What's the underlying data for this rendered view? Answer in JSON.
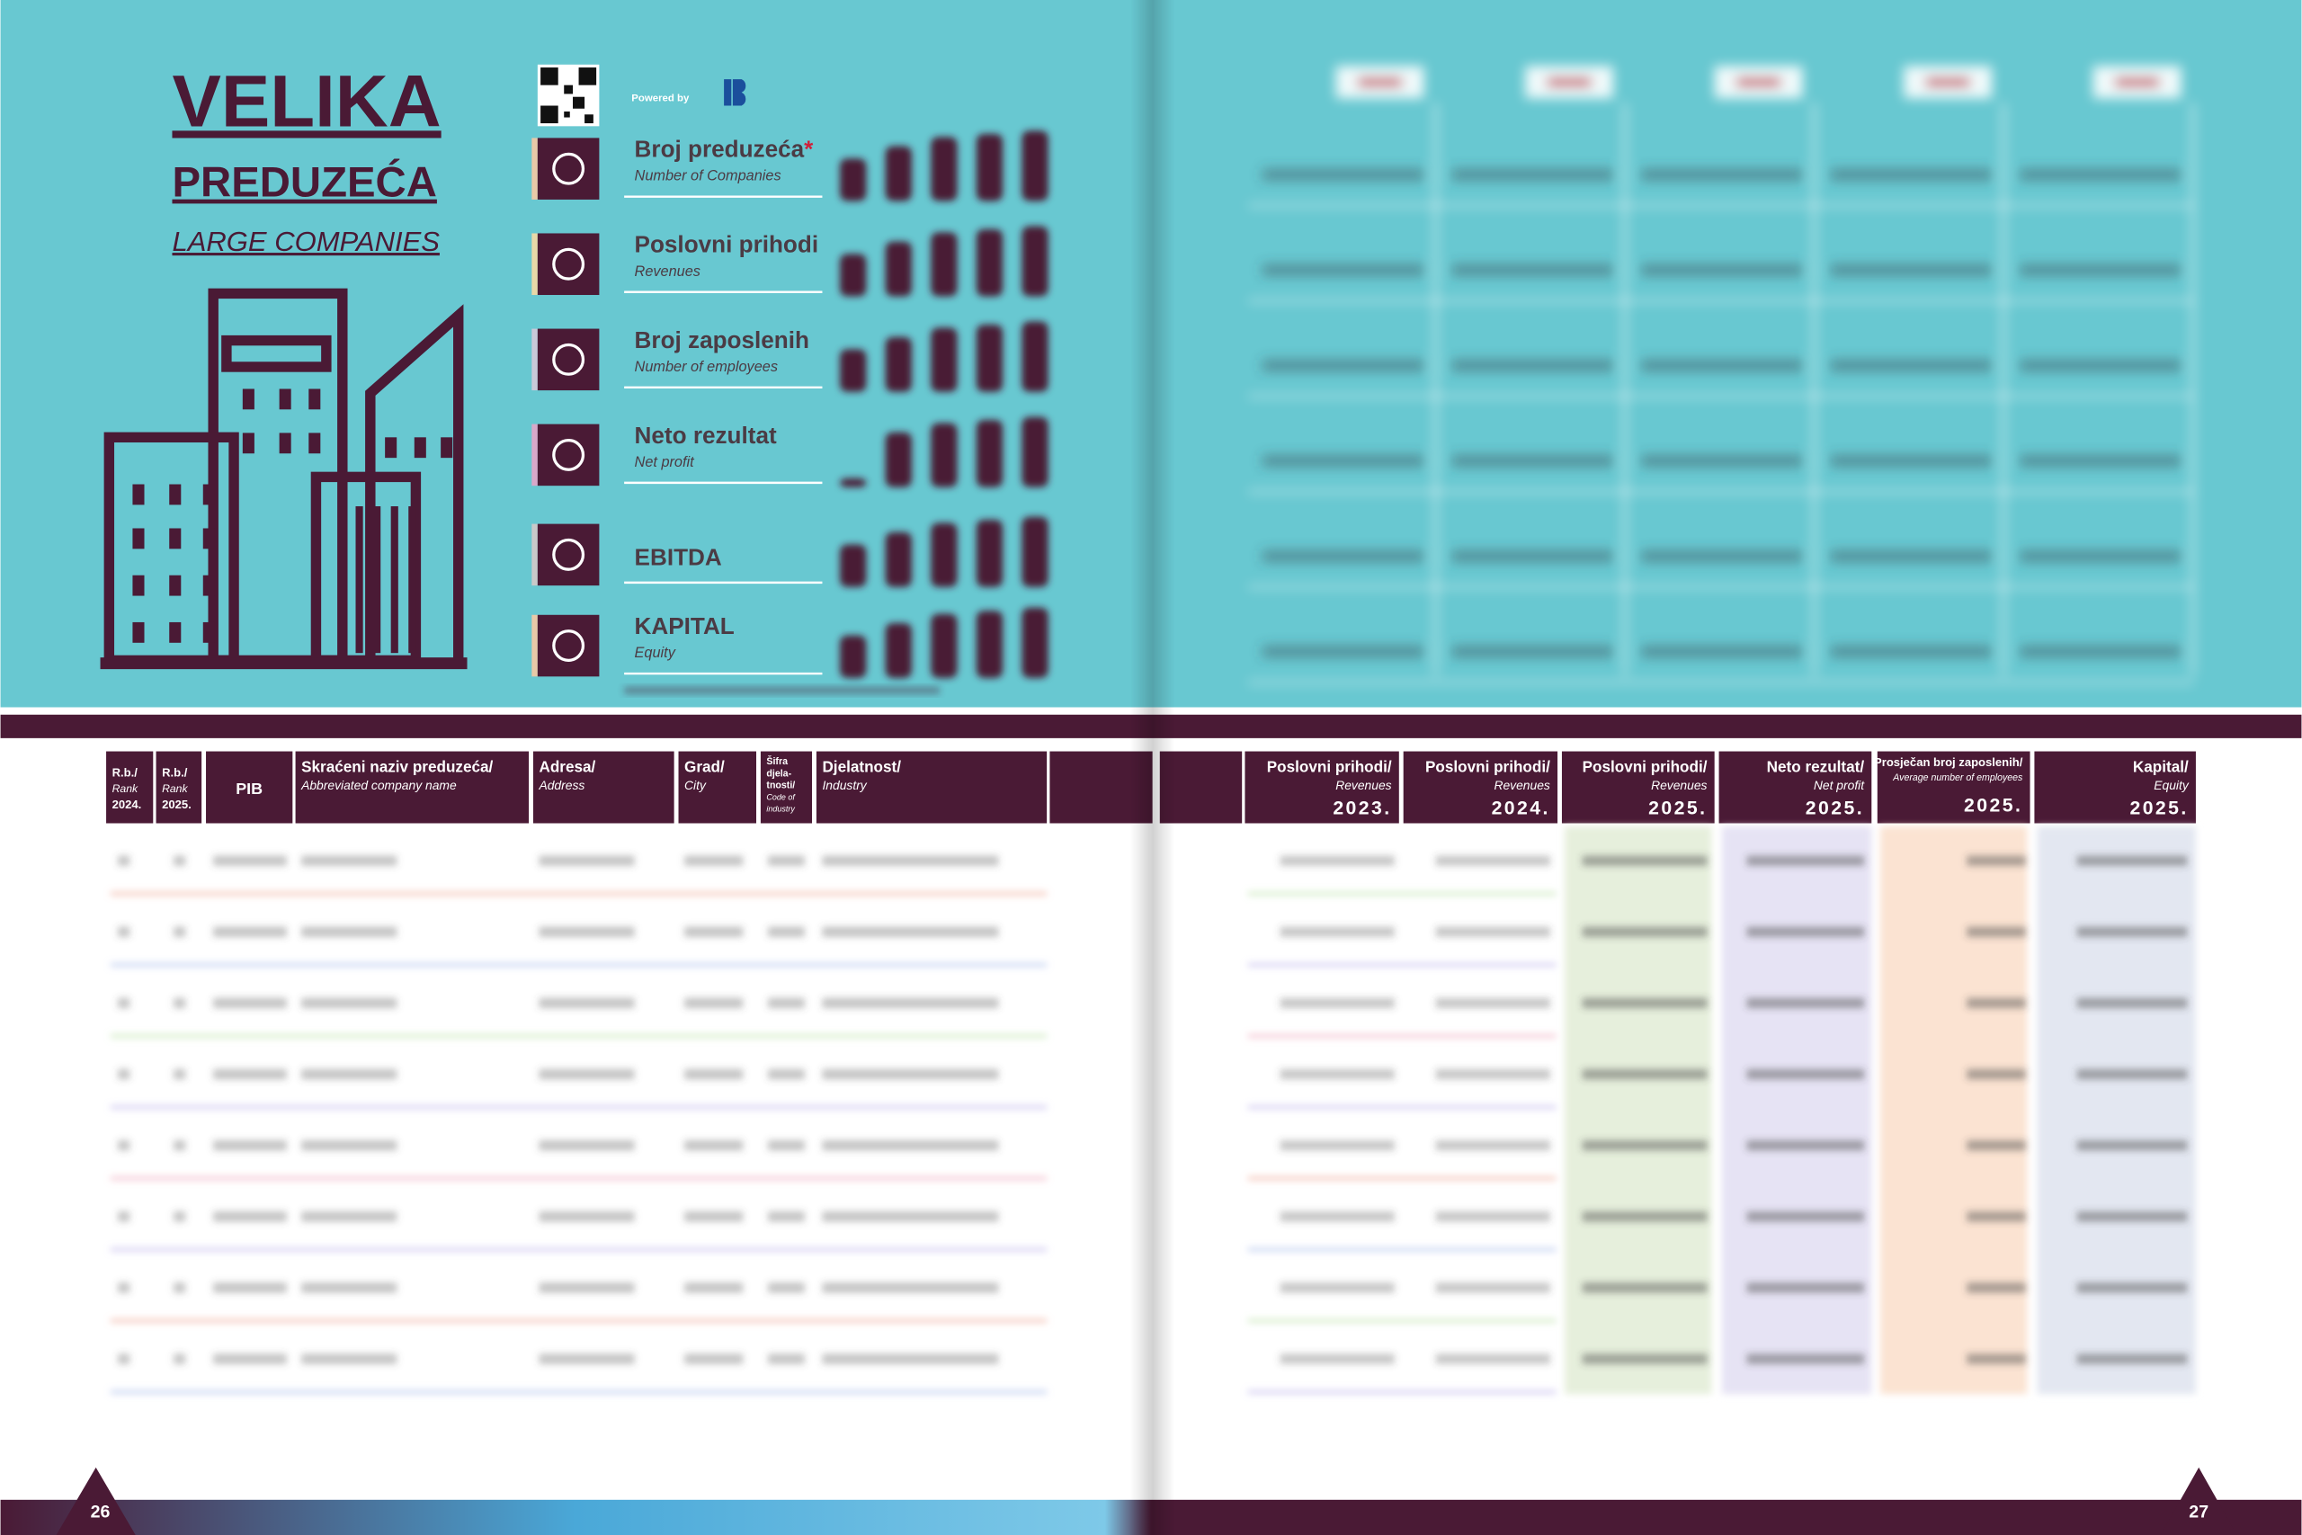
{
  "left_page": {
    "title": "VELIKA",
    "title_line2": "PREDUZEĆA",
    "subtitle": "LARGE COMPANIES",
    "powered_by": "Powered by",
    "indicators": [
      {
        "label": "Broj preduzeća",
        "marker": "*",
        "sublabel": "Number of Companies"
      },
      {
        "label": "Poslovni  prihodi",
        "sublabel": "Revenues"
      },
      {
        "label": "Broj zaposlenih",
        "sublabel": "Number of employees"
      },
      {
        "label": "Neto rezultat",
        "sublabel": "Net profit"
      },
      {
        "label": "EBITDA"
      },
      {
        "label": "KAPITAL",
        "sublabel": "Equity"
      }
    ],
    "page_number": "26"
  },
  "table": {
    "left_headers": [
      {
        "lines": [
          "R.b./",
          "Rank",
          "2024."
        ]
      },
      {
        "lines": [
          "R.b./",
          "Rank",
          "2025."
        ]
      },
      {
        "lines": [
          "PIB"
        ]
      },
      {
        "lines": [
          "Skraćeni naziv preduzeća/",
          "Abbreviated company name"
        ]
      },
      {
        "lines": [
          "Adresa/",
          "Address"
        ]
      },
      {
        "lines": [
          "Grad/",
          "City"
        ]
      },
      {
        "lines": [
          "Šifra",
          "djela-",
          "tnosti/",
          "Code of",
          "industry"
        ]
      },
      {
        "lines": [
          "Djelatnost/",
          "Industry"
        ]
      }
    ],
    "right_headers": [
      {
        "lines": [
          "Poslovni prihodi/",
          "Revenues",
          "2023."
        ]
      },
      {
        "lines": [
          "Poslovni prihodi/",
          "Revenues",
          "2024."
        ]
      },
      {
        "lines": [
          "Poslovni prihodi/",
          "Revenues",
          "2025."
        ]
      },
      {
        "lines": [
          "Neto rezultat/",
          "Net profit",
          "2025."
        ]
      },
      {
        "lines": [
          "Prosječan broj zaposlenih/",
          "Average number of employees",
          "2025."
        ]
      },
      {
        "lines": [
          "Kapital/",
          "Equity",
          "2025."
        ]
      }
    ]
  },
  "right_page": {
    "page_number": "27"
  }
}
